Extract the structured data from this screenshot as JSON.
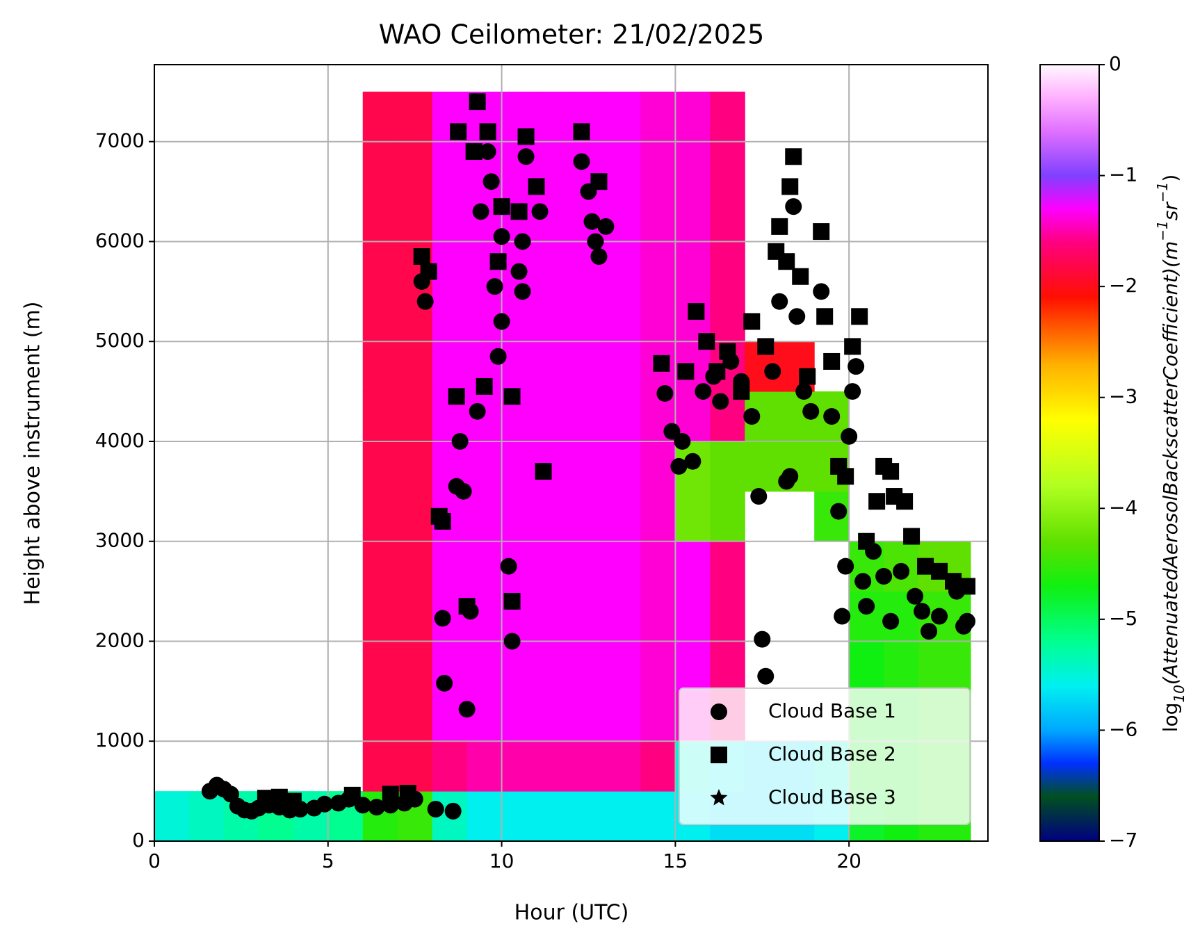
{
  "chart_data": {
    "type": "heatmap",
    "title": "WAO Ceilometer: 21/02/2025",
    "xlabel": "Hour (UTC)",
    "ylabel": "Height above instrument (m)",
    "xlim": [
      0,
      24
    ],
    "ylim": [
      0,
      7770
    ],
    "xticks": [
      0,
      5,
      10,
      15,
      20
    ],
    "yticks": [
      0,
      1000,
      2000,
      3000,
      4000,
      5000,
      6000,
      7000
    ],
    "grid": true,
    "legend": "lower right",
    "heatmap": {
      "x_edges": [
        0,
        1,
        2,
        3,
        4,
        5,
        6,
        7,
        8,
        9,
        10,
        11,
        12,
        13,
        14,
        15,
        16,
        17,
        18,
        19,
        20,
        21,
        22,
        23,
        23.5
      ],
      "y_edges": [
        0,
        500,
        1000,
        1500,
        2000,
        2500,
        3000,
        3500,
        4000,
        4500,
        5000,
        5500,
        6000,
        6500,
        7000,
        7500
      ],
      "values": [
        [
          -5.5,
          -5.4,
          -5.3,
          -5.2,
          -5.3,
          -5.2,
          -4.6,
          -4.5,
          -5.4,
          -5.6,
          -5.6,
          -5.6,
          -5.6,
          -5.6,
          -5.6,
          -5.6,
          -5.7,
          -5.7,
          -5.7,
          -5.6,
          -4.8,
          -4.7,
          -4.6,
          -4.6
        ],
        [
          null,
          null,
          null,
          null,
          null,
          null,
          -1.8,
          -1.8,
          -1.6,
          -1.5,
          -1.5,
          -1.5,
          -1.5,
          -1.5,
          -1.6,
          -5.5,
          -5.6,
          -5.7,
          -5.7,
          -5.5,
          -4.7,
          -4.7,
          -4.6,
          -4.6
        ],
        [
          null,
          null,
          null,
          null,
          null,
          null,
          -1.8,
          -1.8,
          -1.3,
          -1.3,
          -1.3,
          -1.3,
          -1.3,
          -1.3,
          -1.4,
          -1.4,
          -1.6,
          null,
          null,
          null,
          -4.7,
          -4.7,
          -4.6,
          -4.6
        ],
        [
          null,
          null,
          null,
          null,
          null,
          null,
          -1.8,
          -1.8,
          -1.3,
          -1.3,
          -1.3,
          -1.3,
          -1.3,
          -1.3,
          -1.4,
          -1.3,
          -1.6,
          null,
          null,
          null,
          -4.7,
          -4.6,
          -4.5,
          -4.5
        ],
        [
          null,
          null,
          null,
          null,
          null,
          null,
          -1.8,
          -1.8,
          -1.3,
          -1.3,
          -1.3,
          -1.3,
          -1.3,
          -1.3,
          -1.4,
          -1.3,
          -1.6,
          null,
          null,
          null,
          -4.6,
          -4.6,
          -4.5,
          -4.5
        ],
        [
          null,
          null,
          null,
          null,
          null,
          null,
          -1.8,
          -1.8,
          -1.3,
          -1.3,
          -1.3,
          -1.3,
          -1.3,
          -1.3,
          -1.4,
          -1.3,
          -1.6,
          null,
          null,
          null,
          -4.5,
          -4.4,
          -4.3,
          -4.3
        ],
        [
          null,
          null,
          null,
          null,
          null,
          null,
          -1.8,
          -1.8,
          -1.3,
          -1.3,
          -1.3,
          -1.3,
          -1.3,
          -1.3,
          -1.4,
          -4.2,
          -4.3,
          null,
          null,
          -4.5,
          null,
          null,
          null,
          null
        ],
        [
          null,
          null,
          null,
          null,
          null,
          null,
          -1.8,
          -1.8,
          -1.3,
          -1.3,
          -1.3,
          -1.3,
          -1.3,
          -1.3,
          -1.4,
          -4.2,
          -4.3,
          -4.3,
          -4.3,
          -4.3,
          null,
          null,
          null,
          null
        ],
        [
          null,
          null,
          null,
          null,
          null,
          null,
          -1.8,
          -1.8,
          -1.3,
          -1.3,
          -1.3,
          -1.3,
          -1.3,
          -1.3,
          -1.4,
          -1.4,
          -1.6,
          -4.3,
          -4.3,
          -4.3,
          null,
          null,
          null,
          null
        ],
        [
          null,
          null,
          null,
          null,
          null,
          null,
          -1.8,
          -1.8,
          -1.3,
          -1.3,
          -1.3,
          -1.3,
          -1.3,
          -1.3,
          -1.4,
          -1.4,
          -1.6,
          -2.0,
          -2.0,
          null,
          null,
          null,
          null,
          null
        ],
        [
          null,
          null,
          null,
          null,
          null,
          null,
          -1.8,
          -1.8,
          -1.3,
          -1.3,
          -1.3,
          -1.3,
          -1.3,
          -1.3,
          -1.4,
          -1.4,
          -1.6,
          null,
          null,
          null,
          null,
          null,
          null,
          null
        ],
        [
          null,
          null,
          null,
          null,
          null,
          null,
          -1.8,
          -1.8,
          -1.3,
          -1.3,
          -1.3,
          -1.3,
          -1.3,
          -1.3,
          -1.4,
          -1.4,
          -1.6,
          null,
          null,
          null,
          null,
          null,
          null,
          null
        ],
        [
          null,
          null,
          null,
          null,
          null,
          null,
          -1.8,
          -1.8,
          -1.3,
          -1.3,
          -1.3,
          -1.3,
          -1.3,
          -1.3,
          -1.4,
          -1.4,
          -1.6,
          null,
          null,
          null,
          null,
          null,
          null,
          null
        ],
        [
          null,
          null,
          null,
          null,
          null,
          null,
          -1.8,
          -1.8,
          -1.3,
          -1.3,
          -1.3,
          -1.3,
          -1.3,
          -1.3,
          -1.4,
          -1.4,
          -1.6,
          null,
          null,
          null,
          null,
          null,
          null,
          null
        ],
        [
          null,
          null,
          null,
          null,
          null,
          null,
          -1.8,
          -1.8,
          -1.3,
          -1.3,
          -1.3,
          -1.3,
          -1.3,
          -1.3,
          -1.4,
          -1.4,
          -1.6,
          null,
          null,
          null,
          null,
          null,
          null,
          null
        ]
      ]
    },
    "colorbar": {
      "label": [
        "log",
        "10",
        "(AttenuatedAerosolBackscatterCoefficient)(m",
        "−1",
        "sr",
        "−1",
        ")"
      ],
      "lim": [
        -7,
        0
      ],
      "ticks": [
        0,
        {
          "value": -1,
          "label": "−1"
        },
        {
          "value": -2,
          "label": "−2"
        },
        {
          "value": -3,
          "label": "−3"
        },
        {
          "value": -4,
          "label": "−4"
        },
        {
          "value": -5,
          "label": "−5"
        },
        {
          "value": -6,
          "label": "−6"
        },
        {
          "value": -7,
          "label": "−7"
        }
      ],
      "colormap": [
        {
          "value": -7,
          "color": "#000080"
        },
        {
          "value": -6.6,
          "color": "#005020"
        },
        {
          "value": -6.3,
          "color": "#0030ff"
        },
        {
          "value": -6.0,
          "color": "#00a8ff"
        },
        {
          "value": -5.6,
          "color": "#00f0f0"
        },
        {
          "value": -5.2,
          "color": "#00ff90"
        },
        {
          "value": -4.7,
          "color": "#10f010"
        },
        {
          "value": -4.3,
          "color": "#60e000"
        },
        {
          "value": -3.8,
          "color": "#b0ff20"
        },
        {
          "value": -3.2,
          "color": "#ffff00"
        },
        {
          "value": -2.7,
          "color": "#ffb000"
        },
        {
          "value": -2.1,
          "color": "#ff1000"
        },
        {
          "value": -1.6,
          "color": "#ff0080"
        },
        {
          "value": -1.3,
          "color": "#ff00ff"
        },
        {
          "value": -1.0,
          "color": "#8040ff"
        },
        {
          "value": -0.6,
          "color": "#e070ff"
        },
        {
          "value": -0.3,
          "color": "#ffb0ff"
        },
        {
          "value": 0,
          "color": "#fff8ff"
        }
      ]
    },
    "series": [
      {
        "name": "Cloud Base 1",
        "color": "#000000",
        "marker": "circle",
        "x": [
          1.6,
          1.8,
          2.0,
          2.2,
          2.4,
          2.6,
          2.8,
          3.0,
          3.3,
          3.6,
          3.9,
          4.2,
          4.6,
          4.9,
          5.3,
          5.6,
          6.0,
          6.4,
          6.8,
          7.2,
          7.5,
          7.7,
          7.8,
          8.1,
          8.3,
          8.35,
          8.6,
          8.7,
          8.8,
          8.9,
          9.0,
          9.1,
          9.3,
          9.4,
          9.6,
          9.7,
          9.8,
          9.9,
          10.0,
          10.0,
          10.2,
          10.3,
          10.5,
          10.6,
          10.6,
          10.7,
          11.1,
          12.3,
          12.5,
          12.6,
          12.7,
          12.8,
          13.0,
          14.7,
          14.9,
          15.1,
          15.2,
          15.5,
          15.8,
          16.1,
          16.3,
          16.6,
          16.9,
          17.2,
          17.4,
          17.5,
          17.6,
          17.8,
          18.0,
          18.2,
          18.3,
          18.4,
          18.5,
          18.7,
          18.9,
          19.2,
          19.5,
          19.7,
          19.8,
          19.9,
          20.0,
          20.1,
          20.2,
          20.4,
          20.5,
          20.7,
          21.0,
          21.2,
          21.5,
          21.9,
          22.1,
          22.3,
          22.6,
          23.1,
          23.3,
          23.4
        ],
        "values": [
          500,
          560,
          520,
          470,
          350,
          310,
          300,
          330,
          360,
          340,
          310,
          320,
          330,
          370,
          380,
          420,
          360,
          340,
          360,
          380,
          420,
          5600,
          5400,
          320,
          2230,
          1580,
          300,
          3550,
          4000,
          3500,
          1320,
          2300,
          4300,
          6300,
          6900,
          6600,
          5550,
          4850,
          5200,
          6050,
          2750,
          2000,
          5700,
          6000,
          5500,
          6850,
          6300,
          6800,
          6500,
          6200,
          6000,
          5850,
          6150,
          4480,
          4100,
          3750,
          4000,
          3800,
          4500,
          4650,
          4400,
          4800,
          4600,
          4250,
          3450,
          2020,
          1650,
          4700,
          5400,
          3600,
          3650,
          6350,
          5250,
          4500,
          4300,
          5500,
          4250,
          3300,
          2250,
          2750,
          4050,
          4500,
          4750,
          2600,
          2350,
          2900,
          2650,
          2200,
          2700,
          2450,
          2300,
          2100,
          2250,
          2500,
          2150,
          2200
        ]
      },
      {
        "name": "Cloud Base 2",
        "color": "#000000",
        "marker": "square",
        "x": [
          3.2,
          3.6,
          4.0,
          5.7,
          6.8,
          7.3,
          7.7,
          7.9,
          8.2,
          8.3,
          8.7,
          8.75,
          9.0,
          9.2,
          9.3,
          9.5,
          9.6,
          9.9,
          10.0,
          10.3,
          10.3,
          10.5,
          10.7,
          11.0,
          11.2,
          12.3,
          12.8,
          14.6,
          15.3,
          15.6,
          15.9,
          16.2,
          16.5,
          16.9,
          17.2,
          17.6,
          17.9,
          18.0,
          18.2,
          18.3,
          18.4,
          18.6,
          18.8,
          19.2,
          19.3,
          19.5,
          19.7,
          19.9,
          20.1,
          20.3,
          20.5,
          20.8,
          21.0,
          21.2,
          21.3,
          21.6,
          21.8,
          22.2,
          22.6,
          23.0,
          23.4
        ],
        "values": [
          430,
          440,
          400,
          460,
          470,
          480,
          5850,
          5700,
          3250,
          3200,
          4450,
          7100,
          2350,
          6900,
          7400,
          4550,
          7100,
          5800,
          6350,
          4450,
          2400,
          6300,
          7050,
          6550,
          3700,
          7100,
          6600,
          4780,
          4700,
          5300,
          5000,
          4700,
          4900,
          4500,
          5200,
          4950,
          5900,
          6150,
          5800,
          6550,
          6850,
          5650,
          4650,
          6100,
          5250,
          4800,
          3750,
          3650,
          4950,
          5250,
          3000,
          3400,
          3750,
          3700,
          3450,
          3400,
          3050,
          2750,
          2700,
          2600,
          2550
        ]
      },
      {
        "name": "Cloud Base 3",
        "color": "#000000",
        "marker": "star",
        "x": [],
        "values": []
      }
    ]
  }
}
